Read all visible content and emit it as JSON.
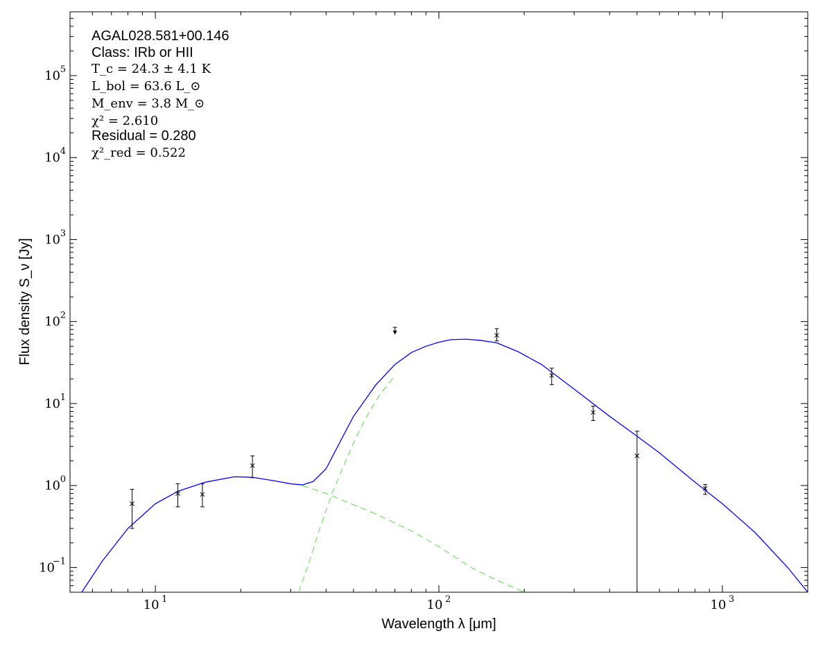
{
  "chart_data": {
    "type": "scatter",
    "x_scale": "log",
    "y_scale": "log",
    "xlim": [
      5,
      2000
    ],
    "ylim": [
      0.05,
      600000
    ],
    "xlabel": "Wavelength λ [μm]",
    "ylabel": "Flux density S_ν [Jy]",
    "x_ticks": [
      {
        "base": "10",
        "exp": "1",
        "value": 10
      },
      {
        "base": "10",
        "exp": "2",
        "value": 100
      },
      {
        "base": "10",
        "exp": "3",
        "value": 1000
      }
    ],
    "y_ticks": [
      {
        "base": "10",
        "exp": "−1",
        "value": 0.1
      },
      {
        "base": "10",
        "exp": "0",
        "value": 1
      },
      {
        "base": "10",
        "exp": "1",
        "value": 10
      },
      {
        "base": "10",
        "exp": "2",
        "value": 100
      },
      {
        "base": "10",
        "exp": "3",
        "value": 1000
      },
      {
        "base": "10",
        "exp": "4",
        "value": 10000
      },
      {
        "base": "10",
        "exp": "5",
        "value": 100000
      }
    ],
    "annotations": {
      "source": "AGAL028.581+00.146",
      "class_line": "Class: IRb or HII",
      "tc": "T_c = 24.3 ± 4.1 K",
      "lbol": "L_bol = 63.6 L_⊙",
      "menv": "M_env = 3.8 M_⊙",
      "chi2": "χ² = 2.610",
      "residual": "Residual = 0.280",
      "chi2red": "χ²_red = 0.522"
    },
    "points": [
      {
        "x": 8.28,
        "y": 0.6,
        "yerr_low": 0.3,
        "yerr_high": 0.9,
        "upper_limit": false
      },
      {
        "x": 12.0,
        "y": 0.8,
        "yerr_low": 0.55,
        "yerr_high": 1.05,
        "upper_limit": false
      },
      {
        "x": 14.65,
        "y": 0.78,
        "yerr_low": 0.55,
        "yerr_high": 1.05,
        "upper_limit": false
      },
      {
        "x": 22.0,
        "y": 1.75,
        "yerr_low": 1.25,
        "yerr_high": 2.3,
        "upper_limit": false
      },
      {
        "x": 70.0,
        "y": 72,
        "yerr_low": null,
        "yerr_high": 85,
        "upper_limit": true
      },
      {
        "x": 160.0,
        "y": 68,
        "yerr_low": 58,
        "yerr_high": 82,
        "upper_limit": false
      },
      {
        "x": 250.0,
        "y": 22,
        "yerr_low": 17,
        "yerr_high": 27,
        "upper_limit": false
      },
      {
        "x": 350.0,
        "y": 7.8,
        "yerr_low": 6.2,
        "yerr_high": 9.3,
        "upper_limit": false
      },
      {
        "x": 500.0,
        "y": 2.3,
        "yerr_low": 0.05,
        "yerr_high": 4.6,
        "upper_limit": false
      },
      {
        "x": 870.0,
        "y": 0.92,
        "yerr_low": 0.78,
        "yerr_high": 1.03,
        "upper_limit": false
      }
    ],
    "series": [
      {
        "style": "solid",
        "color": "#0000ff",
        "x": [
          5.5,
          6.5,
          8,
          10,
          12,
          15,
          19,
          22,
          26,
          30,
          33,
          36,
          40,
          45,
          50,
          60,
          70,
          80,
          90,
          100,
          110,
          125,
          140,
          160,
          190,
          230,
          300,
          400,
          500,
          600,
          800,
          1000,
          1300,
          1700,
          2000
        ],
        "y": [
          0.05,
          0.12,
          0.3,
          0.6,
          0.85,
          1.1,
          1.28,
          1.26,
          1.15,
          1.05,
          1.02,
          1.12,
          1.6,
          3.5,
          7,
          17,
          30,
          42,
          50,
          56,
          60,
          61,
          59,
          55,
          43,
          30,
          15,
          7,
          4,
          2.5,
          1.1,
          0.6,
          0.27,
          0.1,
          0.05
        ]
      },
      {
        "style": "dashed",
        "color": "#66dd55",
        "x": [
          32,
          35,
          38,
          42,
          46,
          50,
          55,
          62,
          70
        ],
        "y": [
          0.05,
          0.12,
          0.3,
          0.8,
          1.7,
          3.3,
          6.5,
          13,
          22
        ]
      },
      {
        "style": "dashed",
        "color": "#66dd55",
        "x": [
          33,
          40,
          60,
          80,
          100,
          130,
          160,
          200
        ],
        "y": [
          1.0,
          0.8,
          0.45,
          0.28,
          0.18,
          0.1,
          0.07,
          0.05
        ]
      }
    ]
  }
}
